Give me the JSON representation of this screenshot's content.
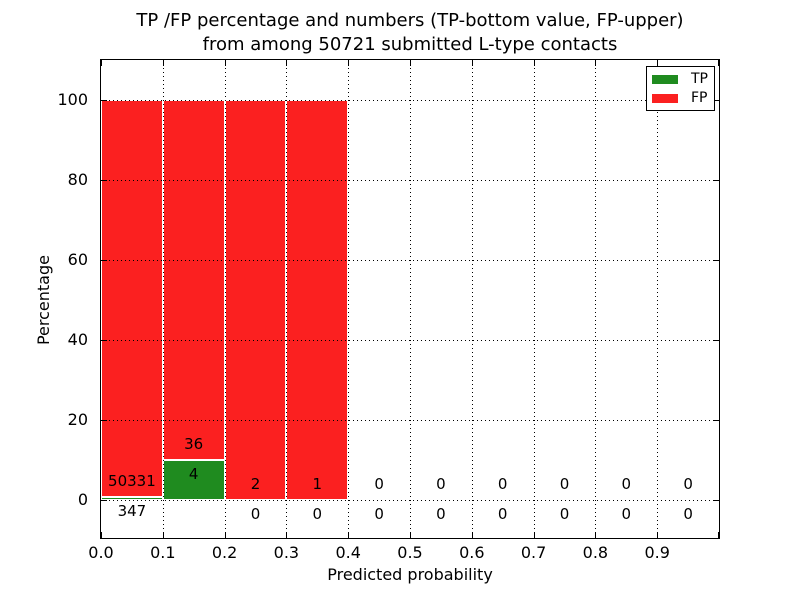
{
  "chart_data": {
    "type": "bar",
    "variant": "stacked-percentage-histogram",
    "title_line1": "TP /FP percentage and numbers (TP-bottom value, FP-upper)",
    "title_line2": "from among 50721 submitted L-type contacts",
    "xlabel": "Predicted probability",
    "ylabel": "Percentage",
    "total_submitted": 50721,
    "x_ticks": [
      "0.0",
      "0.1",
      "0.2",
      "0.3",
      "0.4",
      "0.5",
      "0.6",
      "0.7",
      "0.8",
      "0.9"
    ],
    "y_ticks": [
      0,
      20,
      40,
      60,
      80,
      100
    ],
    "xlim": [
      0.0,
      1.0
    ],
    "ylim": [
      -10,
      110
    ],
    "grid": "dotted",
    "legend": {
      "position": "upper-right",
      "entries": [
        {
          "label": "TP",
          "color": "#1f8b1f"
        },
        {
          "label": "FP",
          "color": "#fb2020"
        }
      ]
    },
    "categories": [
      "0.0-0.1",
      "0.1-0.2",
      "0.2-0.3",
      "0.3-0.4",
      "0.4-0.5",
      "0.5-0.6",
      "0.6-0.7",
      "0.7-0.8",
      "0.8-0.9",
      "0.9-1.0"
    ],
    "bins": [
      {
        "tp_count": 347,
        "fp_count": 50331,
        "tp_pct": 0.68,
        "total_pct": 100
      },
      {
        "tp_count": 4,
        "fp_count": 36,
        "tp_pct": 10,
        "total_pct": 100
      },
      {
        "tp_count": 0,
        "fp_count": 2,
        "tp_pct": 0,
        "total_pct": 100
      },
      {
        "tp_count": 0,
        "fp_count": 1,
        "tp_pct": 0,
        "total_pct": 100
      },
      {
        "tp_count": 0,
        "fp_count": 0,
        "tp_pct": 0,
        "total_pct": 0
      },
      {
        "tp_count": 0,
        "fp_count": 0,
        "tp_pct": 0,
        "total_pct": 0
      },
      {
        "tp_count": 0,
        "fp_count": 0,
        "tp_pct": 0,
        "total_pct": 0
      },
      {
        "tp_count": 0,
        "fp_count": 0,
        "tp_pct": 0,
        "total_pct": 0
      },
      {
        "tp_count": 0,
        "fp_count": 0,
        "tp_pct": 0,
        "total_pct": 0
      },
      {
        "tp_count": 0,
        "fp_count": 0,
        "tp_pct": 0,
        "total_pct": 0
      }
    ],
    "series": [
      {
        "name": "TP",
        "color": "#1f8b1f",
        "values": [
          0.68,
          10,
          0,
          0,
          0,
          0,
          0,
          0,
          0,
          0
        ]
      },
      {
        "name": "FP",
        "color": "#fb2020",
        "values": [
          99.32,
          90,
          100,
          100,
          0,
          0,
          0,
          0,
          0,
          0
        ]
      }
    ]
  },
  "colors": {
    "background": "#ffffff",
    "text": "#000000",
    "grid": "#000000",
    "bar_edge": "#ffffff",
    "tp": "#1f8b1f",
    "fp": "#fb2020"
  }
}
